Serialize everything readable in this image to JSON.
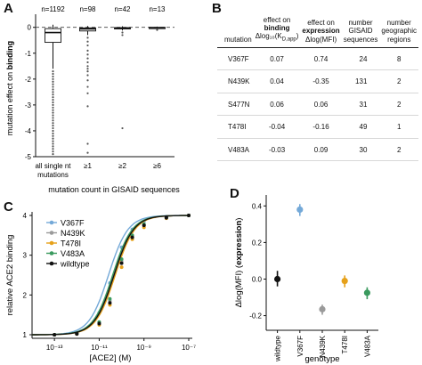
{
  "panels": {
    "a": "A",
    "b": "B",
    "c": "C",
    "d": "D"
  },
  "chart_data": [
    {
      "panel": "A",
      "type": "box",
      "ylabel": "mutation effect on binding",
      "xlabel": "mutation count in GISAID sequences",
      "categories": [
        "all single nt mutations",
        "≥1",
        "≥2",
        "≥6"
      ],
      "category_lines": [
        [
          "all single nt",
          "mutations"
        ],
        [
          "≥1"
        ],
        [
          "≥2"
        ],
        [
          "≥6"
        ]
      ],
      "counts": [
        "n=1192",
        "n=98",
        "n=42",
        "n=13"
      ],
      "ylim": [
        -5,
        0.3
      ],
      "yticks": [
        0,
        -1,
        -2,
        -3,
        -4,
        -5
      ],
      "reference_line": 0,
      "boxes": [
        {
          "whisker_low": -1.6,
          "q1": -0.58,
          "median": -0.2,
          "q3": -0.05,
          "whisker_high": 0.1,
          "outliers": [
            -1.7,
            -1.8,
            -1.9,
            -2.0,
            -2.1,
            -2.2,
            -2.3,
            -2.4,
            -2.5,
            -2.6,
            -2.7,
            -2.8,
            -2.9,
            -3.0,
            -3.1,
            -3.2,
            -3.3,
            -3.4,
            -3.5,
            -3.6,
            -3.7,
            -3.8,
            -3.9,
            -4.0,
            -4.1,
            -4.2,
            -4.3,
            -4.4,
            -4.5,
            -4.6,
            -4.7,
            -4.8,
            -4.9
          ]
        },
        {
          "whisker_low": -0.3,
          "q1": -0.14,
          "median": -0.06,
          "q3": -0.02,
          "whisker_high": 0.05,
          "outliers": [
            -0.4,
            -0.55,
            -0.7,
            -0.9,
            -1.05,
            -1.2,
            -1.35,
            -1.5,
            -1.6,
            -1.7,
            -1.85,
            -2.05,
            -2.3,
            -2.55,
            -3.05,
            -4.5,
            -4.85
          ]
        },
        {
          "whisker_low": -0.12,
          "q1": -0.06,
          "median": -0.03,
          "q3": -0.01,
          "whisker_high": 0.04,
          "outliers": [
            -0.2,
            -0.3,
            -3.9
          ]
        },
        {
          "whisker_low": -0.06,
          "q1": -0.03,
          "median": -0.01,
          "q3": 0.0,
          "whisker_high": 0.03,
          "outliers": [
            -0.1
          ]
        }
      ]
    },
    {
      "panel": "C",
      "type": "line",
      "xlabel": "[ACE2] (M)",
      "ylabel": "relative ACE2 binding",
      "x_scale": "log",
      "xlim": [
        1e-14,
        1e-07
      ],
      "xticks": [
        1e-13,
        1e-11,
        1e-09,
        1e-07
      ],
      "xtick_labels": [
        "10⁻¹³",
        "10⁻¹¹",
        "10⁻⁹",
        "10⁻⁷"
      ],
      "ylim": [
        1,
        4
      ],
      "yticks": [
        1,
        2,
        3,
        4
      ],
      "x": [
        1e-13,
        1e-12,
        1e-11,
        3e-11,
        1e-10,
        3e-10,
        1e-09,
        1e-08,
        1e-07
      ],
      "legend_position": "top-left",
      "series": [
        {
          "name": "V367F",
          "color": "#74a9d8",
          "kd": 2.6e-11,
          "values": [
            1.0,
            1.05,
            1.55,
            2.3,
            3.2,
            3.65,
            3.85,
            3.97,
            4.0
          ]
        },
        {
          "name": "N439K",
          "color": "#9a9a9a",
          "kd": 4.3e-11,
          "values": [
            1.0,
            1.03,
            1.3,
            1.85,
            2.85,
            3.45,
            3.75,
            3.95,
            4.0
          ]
        },
        {
          "name": "T478I",
          "color": "#e6a11a",
          "kd": 5.2e-11,
          "values": [
            1.0,
            1.02,
            1.25,
            1.75,
            2.7,
            3.4,
            3.7,
            3.93,
            4.0
          ]
        },
        {
          "name": "V483A",
          "color": "#3a9a5e",
          "kd": 4e-11,
          "values": [
            1.0,
            1.03,
            1.32,
            1.9,
            2.9,
            3.5,
            3.78,
            3.95,
            4.0
          ]
        },
        {
          "name": "wildtype",
          "color": "#111111",
          "kd": 4.6e-11,
          "values": [
            1.0,
            1.02,
            1.28,
            1.8,
            2.8,
            3.45,
            3.75,
            3.94,
            4.0
          ]
        }
      ]
    },
    {
      "panel": "D",
      "type": "scatter",
      "xlabel": "genotype",
      "ylabel": "Δlog(MFI) (expression)",
      "categories": [
        "wildtype",
        "V367F",
        "N439K",
        "T478I",
        "V483A"
      ],
      "ylim": [
        -0.28,
        0.46
      ],
      "yticks": [
        0.4,
        0.2,
        0.0,
        -0.2
      ],
      "ytick_labels": [
        "0.4",
        "0.2",
        "0.0",
        "-0.2"
      ],
      "points": [
        {
          "label": "wildtype",
          "value": 0.0,
          "low": -0.04,
          "high": 0.045,
          "color": "#111111"
        },
        {
          "label": "V367F",
          "value": 0.38,
          "low": 0.345,
          "high": 0.41,
          "color": "#74a9d8"
        },
        {
          "label": "N439K",
          "value": -0.165,
          "low": -0.195,
          "high": -0.14,
          "color": "#9a9a9a"
        },
        {
          "label": "T478I",
          "value": -0.01,
          "low": -0.045,
          "high": 0.02,
          "color": "#e6a11a"
        },
        {
          "label": "V483A",
          "value": -0.075,
          "low": -0.11,
          "high": -0.045,
          "color": "#3a9a5e"
        }
      ]
    }
  ],
  "table": {
    "headers": {
      "mutation": "mutation",
      "binding_1": "effect on",
      "binding_2": "binding",
      "binding_3": "Δlog₁₀(K",
      "binding_3_sub": "D,app",
      "binding_3_end": ")",
      "expr_1": "effect on",
      "expr_2": "expression",
      "expr_3": "Δlog(MFI)",
      "gisaid_1": "number GISAID",
      "gisaid_2": "sequences",
      "regions_1": "number",
      "regions_2": "geographic",
      "regions_3": "regions"
    },
    "rows": [
      {
        "mutation": "V367F",
        "binding": "0.07",
        "expression": "0.74",
        "sequences": "24",
        "regions": "8"
      },
      {
        "mutation": "N439K",
        "binding": "0.04",
        "expression": "-0.35",
        "sequences": "131",
        "regions": "2"
      },
      {
        "mutation": "S477N",
        "binding": "0.06",
        "expression": "0.06",
        "sequences": "31",
        "regions": "2"
      },
      {
        "mutation": "T478I",
        "binding": "-0.04",
        "expression": "-0.16",
        "sequences": "49",
        "regions": "1"
      },
      {
        "mutation": "V483A",
        "binding": "-0.03",
        "expression": "0.09",
        "sequences": "30",
        "regions": "2"
      }
    ]
  },
  "colors": {
    "axis": "#111111",
    "box_fill": "#ffffff",
    "outlier": "#555555",
    "reference_line": "#444444"
  }
}
